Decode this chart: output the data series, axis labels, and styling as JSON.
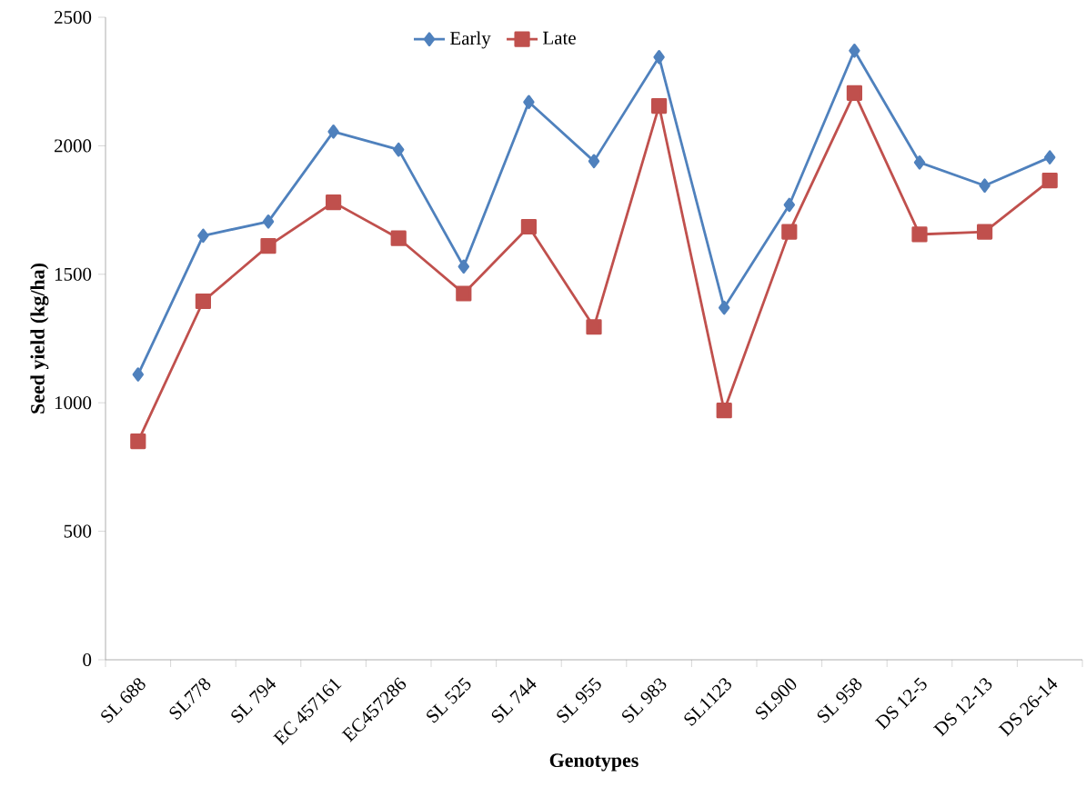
{
  "chart_data": {
    "type": "line",
    "xlabel": "Genotypes",
    "ylabel": "Seed yield (kg/ha)",
    "categories": [
      "SL 688",
      "SL778",
      "SL 794",
      "EC 457161",
      "EC457286",
      "SL 525",
      "SL 744",
      "SL 955",
      "SL 983",
      "SL1123",
      "SL900",
      "SL 958",
      "DS 12-5",
      "DS 12-13",
      "DS 26-14"
    ],
    "series": [
      {
        "name": "Early",
        "color": "#4f81bd",
        "marker": "diamond",
        "values": [
          1110,
          1650,
          1705,
          2055,
          1985,
          1530,
          2170,
          1940,
          2345,
          1370,
          1770,
          2370,
          1935,
          1845,
          1955
        ]
      },
      {
        "name": "Late",
        "color": "#c0504d",
        "marker": "square",
        "values": [
          850,
          1395,
          1610,
          1780,
          1640,
          1425,
          1685,
          1295,
          2155,
          970,
          1665,
          2205,
          1655,
          1665,
          1865
        ]
      }
    ],
    "ylim": [
      0,
      2500
    ],
    "yticks": [
      0,
      500,
      1000,
      1500,
      2000,
      2500
    ],
    "grid": false,
    "legend": "top",
    "line_style": "solid"
  }
}
